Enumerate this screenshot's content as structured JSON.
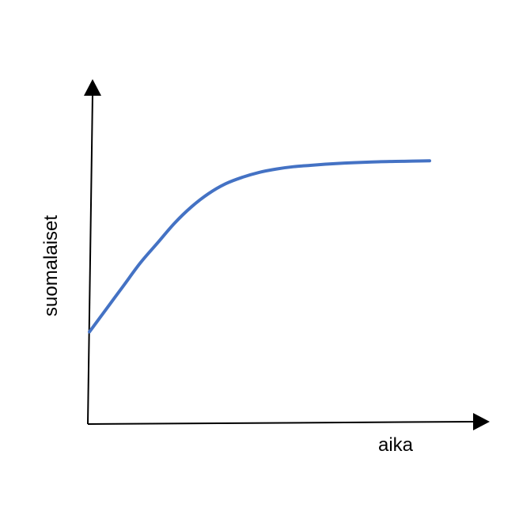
{
  "chart_data": {
    "type": "line",
    "title": "",
    "xlabel": "aika",
    "ylabel": "suomalaiset",
    "xlim": [
      0,
      10
    ],
    "ylim": [
      0,
      10
    ],
    "grid": false,
    "legend": "none",
    "series": [
      {
        "color": "#4472C4",
        "x": [
          0,
          0.5,
          1,
          1.5,
          2,
          2.5,
          3,
          3.5,
          4,
          4.5,
          5,
          5.5,
          6,
          6.5,
          7,
          7.5,
          8,
          8.5,
          9,
          9.5,
          10
        ],
        "y": [
          2.8,
          3.5,
          4.2,
          4.9,
          5.5,
          6.1,
          6.6,
          7.0,
          7.3,
          7.5,
          7.65,
          7.75,
          7.82,
          7.86,
          7.9,
          7.93,
          7.95,
          7.97,
          7.98,
          7.99,
          8.0
        ]
      }
    ]
  }
}
